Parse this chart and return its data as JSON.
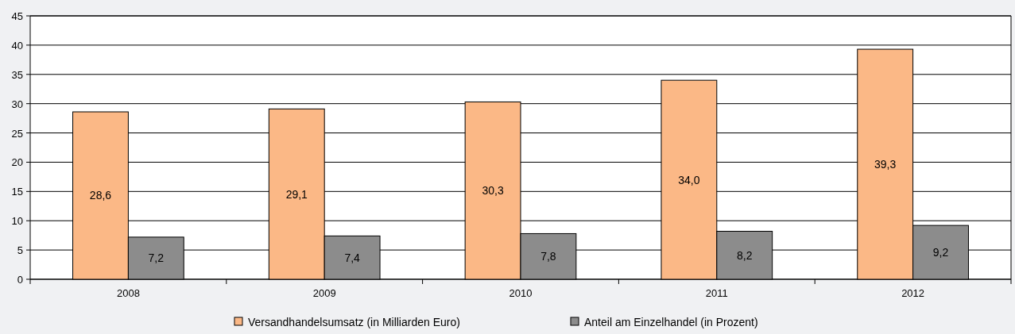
{
  "chart_data": {
    "type": "bar",
    "categories": [
      "2008",
      "2009",
      "2010",
      "2011",
      "2012"
    ],
    "series": [
      {
        "name": "Versandhandelsumsatz (in Milliarden Euro)",
        "color": "#fbb886",
        "values": [
          28.6,
          29.1,
          30.3,
          34.0,
          39.3
        ],
        "value_labels": [
          "28,6",
          "29,1",
          "30,3",
          "34,0",
          "39,3"
        ]
      },
      {
        "name": "Anteil am Einzelhandel (in Prozent)",
        "color": "#8c8c8c",
        "values": [
          7.2,
          7.4,
          7.8,
          8.2,
          9.2
        ],
        "value_labels": [
          "7,2",
          "7,4",
          "7,8",
          "8,2",
          "9,2"
        ]
      }
    ],
    "ylim": [
      0,
      45
    ],
    "yticks": [
      0,
      5,
      10,
      15,
      20,
      25,
      30,
      35,
      40,
      45
    ],
    "grid": "y",
    "legend": "bottom"
  }
}
